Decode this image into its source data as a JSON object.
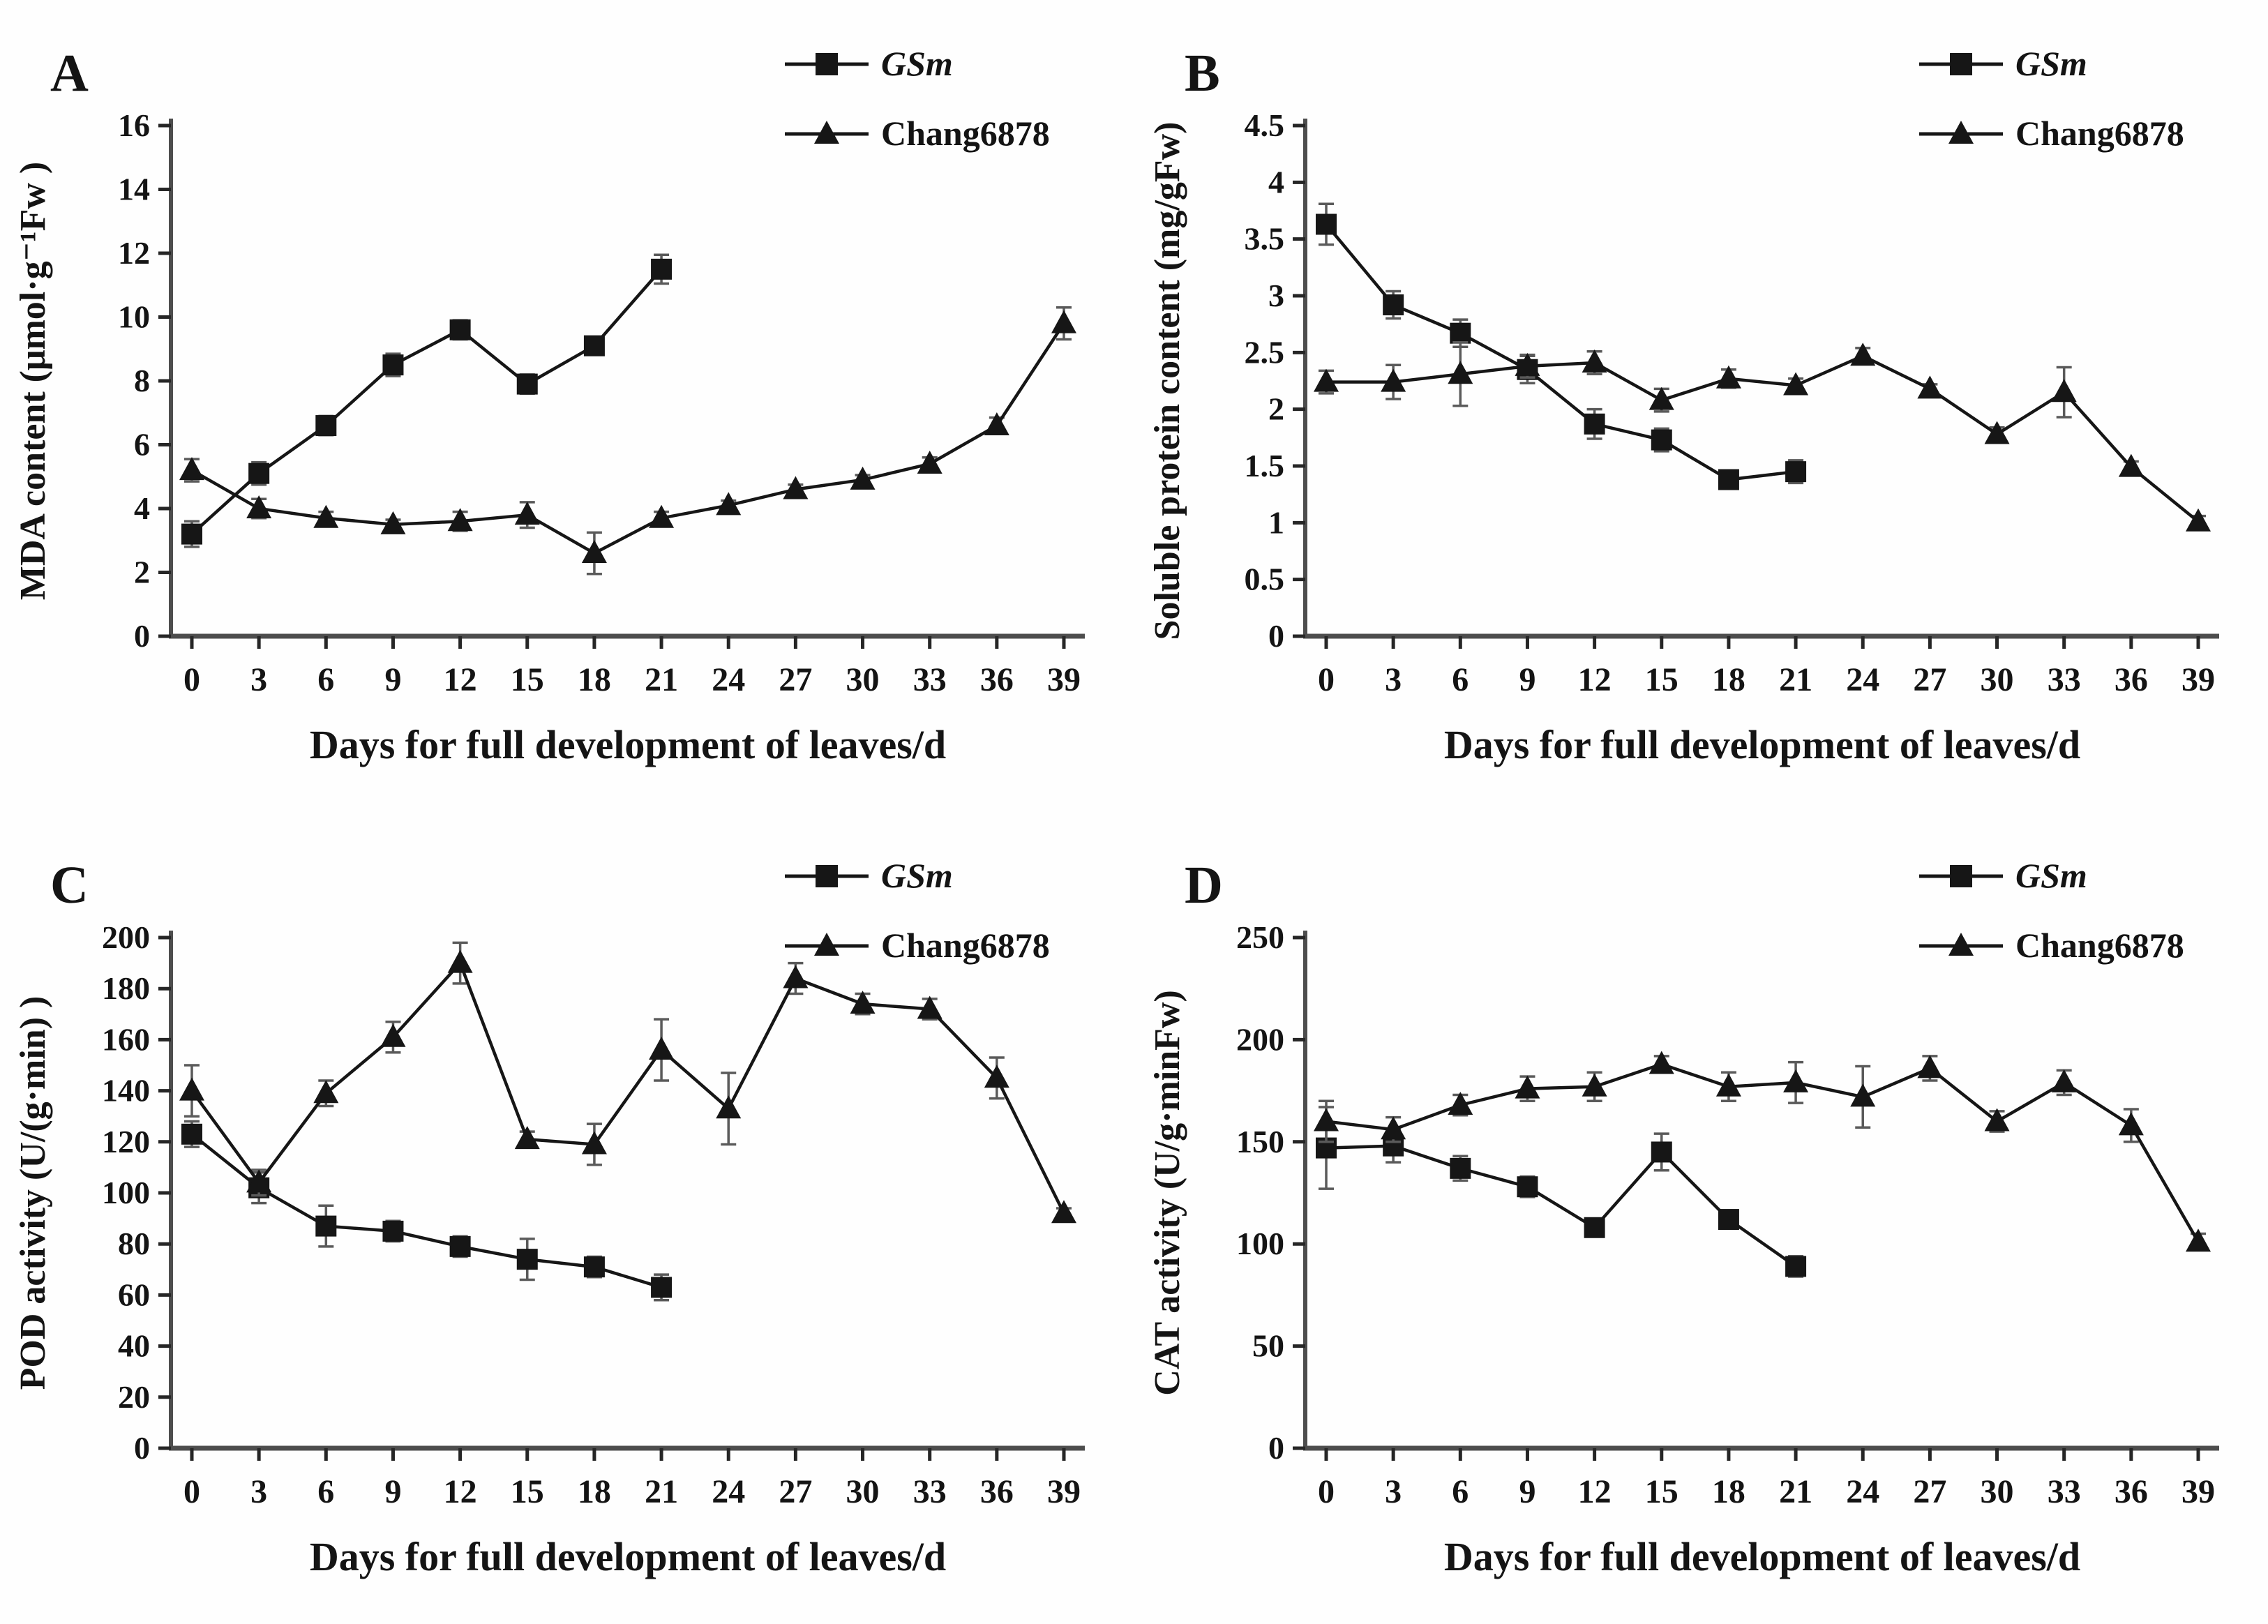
{
  "figure": {
    "background": "#fefefe",
    "ink_color": "#161616",
    "axis_color": "#4d4d4d",
    "error_bar_color": "#5a5a5a",
    "xlabel": "Days for full development of leaves/d",
    "legend": [
      "GSm",
      "Chang6878"
    ]
  },
  "chart_data": [
    {
      "type": "line",
      "panel": "A",
      "xlabel": "Days for full development of leaves/d",
      "ylabel": "MDA content (μmol·g⁻¹Fw )",
      "x_categories": [
        0,
        3,
        6,
        9,
        12,
        15,
        18,
        21,
        24,
        27,
        30,
        33,
        36,
        39
      ],
      "x_step": 3,
      "ylim": [
        0,
        16
      ],
      "ytick_step": 2,
      "grid": false,
      "legend_position": "top-right",
      "series": [
        {
          "name": "GSm",
          "italic": true,
          "marker": "square",
          "x": [
            0,
            3,
            6,
            9,
            12,
            15,
            18,
            21
          ],
          "values": [
            3.2,
            5.1,
            6.6,
            8.5,
            9.6,
            7.9,
            9.1,
            11.5
          ],
          "errors": [
            0.4,
            0.35,
            0.3,
            0.35,
            0.3,
            0.3,
            0.2,
            0.45
          ]
        },
        {
          "name": "Chang6878",
          "italic": false,
          "marker": "triangle",
          "x": [
            0,
            3,
            6,
            9,
            12,
            15,
            18,
            21,
            24,
            27,
            30,
            33,
            36,
            39
          ],
          "values": [
            5.2,
            4.0,
            3.7,
            3.5,
            3.6,
            3.8,
            2.6,
            3.7,
            4.1,
            4.6,
            4.9,
            5.4,
            6.6,
            9.8
          ],
          "errors": [
            0.35,
            0.3,
            0.2,
            0.15,
            0.3,
            0.4,
            0.65,
            0.2,
            0.15,
            0.15,
            0.15,
            0.2,
            0.25,
            0.5
          ]
        }
      ]
    },
    {
      "type": "line",
      "panel": "B",
      "xlabel": "Days for full development of leaves/d",
      "ylabel": "Soluble protein content (mg/gFw)",
      "x_categories": [
        0,
        3,
        6,
        9,
        12,
        15,
        18,
        21,
        24,
        27,
        30,
        33,
        36,
        39
      ],
      "x_step": 3,
      "ylim": [
        0,
        4.5
      ],
      "ytick_step": 0.5,
      "grid": false,
      "legend_position": "top-right",
      "series": [
        {
          "name": "GSm",
          "italic": true,
          "marker": "square",
          "x": [
            0,
            3,
            6,
            9,
            12,
            15,
            18,
            21
          ],
          "values": [
            3.63,
            2.92,
            2.67,
            2.35,
            1.87,
            1.73,
            1.38,
            1.45
          ],
          "errors": [
            0.18,
            0.12,
            0.12,
            0.12,
            0.13,
            0.1,
            0.06,
            0.1
          ]
        },
        {
          "name": "Chang6878",
          "italic": false,
          "marker": "triangle",
          "x": [
            0,
            3,
            6,
            9,
            12,
            15,
            18,
            21,
            24,
            27,
            30,
            33,
            36,
            39
          ],
          "values": [
            2.24,
            2.24,
            2.31,
            2.38,
            2.41,
            2.08,
            2.27,
            2.21,
            2.47,
            2.18,
            1.78,
            2.15,
            1.49,
            1.01
          ],
          "errors": [
            0.1,
            0.15,
            0.28,
            0.1,
            0.1,
            0.1,
            0.08,
            0.06,
            0.07,
            0.04,
            0.06,
            0.22,
            0.05,
            0.05
          ]
        }
      ]
    },
    {
      "type": "line",
      "panel": "C",
      "xlabel": "Days for full development of leaves/d",
      "ylabel": "POD activity (U/(g·min) )",
      "x_categories": [
        0,
        3,
        6,
        9,
        12,
        15,
        18,
        21,
        24,
        27,
        30,
        33,
        36,
        39
      ],
      "x_step": 3,
      "ylim": [
        0,
        200
      ],
      "ytick_step": 20,
      "grid": false,
      "legend_position": "top-right",
      "series": [
        {
          "name": "GSm",
          "italic": true,
          "marker": "square",
          "x": [
            0,
            3,
            6,
            9,
            12,
            15,
            18,
            21
          ],
          "values": [
            123,
            102,
            87,
            85,
            79,
            74,
            71,
            63
          ],
          "errors": [
            5,
            6,
            8,
            4,
            4,
            8,
            4,
            5
          ]
        },
        {
          "name": "Chang6878",
          "italic": false,
          "marker": "triangle",
          "x": [
            0,
            3,
            6,
            9,
            12,
            15,
            18,
            21,
            24,
            27,
            30,
            33,
            36,
            39
          ],
          "values": [
            140,
            104,
            139,
            161,
            190,
            121,
            119,
            156,
            133,
            184,
            174,
            172,
            145,
            92
          ],
          "errors": [
            10,
            5,
            5,
            6,
            8,
            3,
            8,
            12,
            14,
            6,
            4,
            4,
            8,
            2
          ]
        }
      ]
    },
    {
      "type": "line",
      "panel": "D",
      "xlabel": "Days for full development of leaves/d",
      "ylabel": "CAT activity (U/g·minFw)",
      "x_categories": [
        0,
        3,
        6,
        9,
        12,
        15,
        18,
        21,
        24,
        27,
        30,
        33,
        36,
        39
      ],
      "x_step": 3,
      "ylim": [
        0,
        250
      ],
      "ytick_step": 50,
      "grid": false,
      "legend_position": "top-right",
      "series": [
        {
          "name": "GSm",
          "italic": true,
          "marker": "square",
          "x": [
            0,
            3,
            6,
            9,
            12,
            15,
            18,
            21
          ],
          "values": [
            147,
            148,
            137,
            128,
            108,
            145,
            112,
            89
          ],
          "errors": [
            20,
            8,
            6,
            5,
            4,
            9,
            4,
            5
          ]
        },
        {
          "name": "Chang6878",
          "italic": false,
          "marker": "triangle",
          "x": [
            0,
            3,
            6,
            9,
            12,
            15,
            18,
            21,
            24,
            27,
            30,
            33,
            36,
            39
          ],
          "values": [
            160,
            156,
            168,
            176,
            177,
            188,
            177,
            179,
            172,
            186,
            160,
            179,
            158,
            101
          ],
          "errors": [
            10,
            6,
            5,
            6,
            7,
            4,
            7,
            10,
            15,
            6,
            5,
            6,
            8,
            4
          ]
        }
      ]
    }
  ]
}
